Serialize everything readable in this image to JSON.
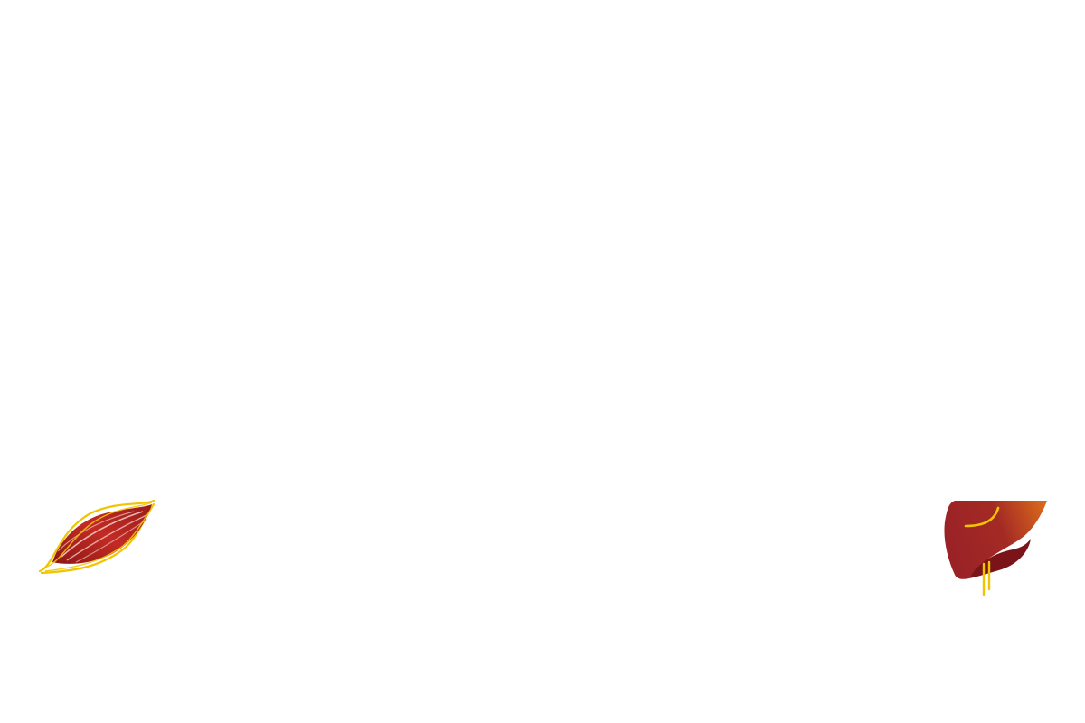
{
  "colors": {
    "background": "#ffffff",
    "muscle_red": "#b0231f",
    "muscle_dark": "#8e1616",
    "muscle_highlight": "#f6d0c8",
    "tendon_yellow": "#f2c400",
    "liver_red": "#9a2226",
    "liver_dark": "#7a1418",
    "liver_orange": "#d8661c",
    "liver_vessel": "#f2c400"
  },
  "icons": {
    "muscle": "muscle-icon",
    "liver": "liver-icon"
  }
}
